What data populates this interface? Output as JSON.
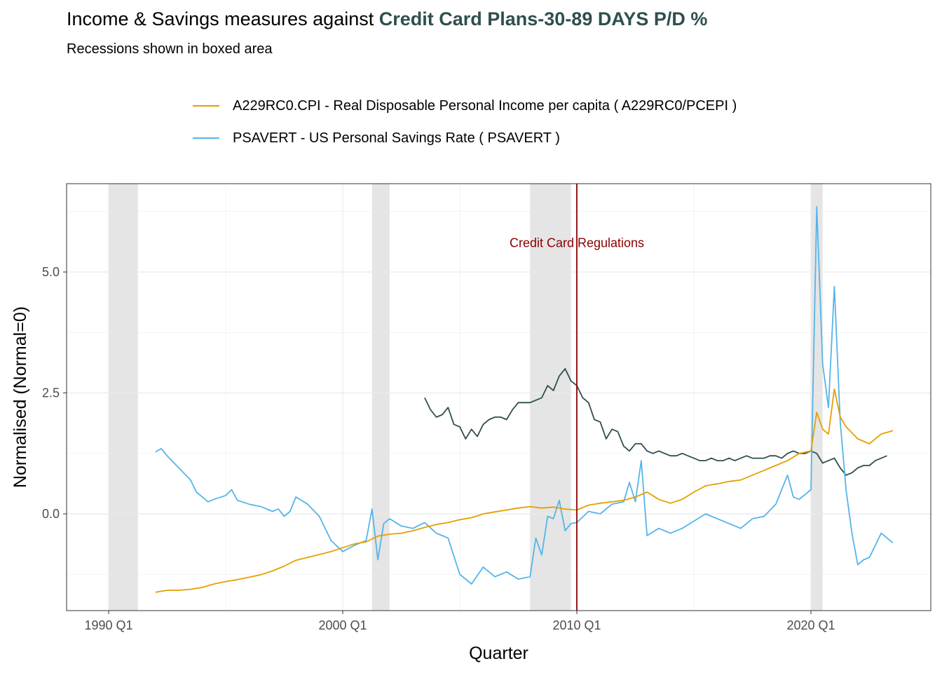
{
  "header": {
    "title_prefix": "Income & Savings measures against ",
    "title_highlight": "Credit Card Plans-30-89 DAYS P/D %",
    "subtitle": "Recessions shown in boxed area"
  },
  "colors": {
    "highlight": "#2F4F4F",
    "reference": "#2F4F4F",
    "income": "#E69F00",
    "savings": "#56B4E9",
    "regulation_line": "#8B0000",
    "recession_fill": "#E5E5E5",
    "grid": "#EBEBEB"
  },
  "chart_data": {
    "type": "line",
    "xlabel": "Quarter",
    "ylabel": "Normalised (Normal=0)",
    "xlim": [
      1990.0,
      2023.75
    ],
    "ylim": [
      -2.0,
      6.8
    ],
    "x_ticks": [
      {
        "value": 1990.0,
        "label": "1990 Q1"
      },
      {
        "value": 2000.0,
        "label": "2000 Q1"
      },
      {
        "value": 2010.0,
        "label": "2010 Q1"
      },
      {
        "value": 2020.0,
        "label": "2020 Q1"
      }
    ],
    "y_ticks": [
      {
        "value": 0.0,
        "label": "0.0"
      },
      {
        "value": 2.5,
        "label": "2.5"
      },
      {
        "value": 5.0,
        "label": "5.0"
      }
    ],
    "grid": true,
    "legend_position": "top",
    "recessions": [
      [
        1990.0,
        1991.25
      ],
      [
        2001.25,
        2002.0
      ],
      [
        2008.0,
        2009.75
      ],
      [
        2020.0,
        2020.5
      ]
    ],
    "annotation": {
      "x": 2010.0,
      "y": 5.6,
      "text": "Credit Card Regulations"
    },
    "series": [
      {
        "name": "A229RC0.CPI - Real Disposable Personal Income per capita ( A229RC0/PCEPI )",
        "role": "income",
        "x": [
          1992.0,
          1992.5,
          1993.0,
          1993.5,
          1994.0,
          1994.5,
          1995.0,
          1995.5,
          1996.0,
          1996.5,
          1997.0,
          1997.5,
          1998.0,
          1998.5,
          1999.0,
          1999.5,
          2000.0,
          2000.5,
          2001.0,
          2001.5,
          2002.0,
          2002.5,
          2003.0,
          2003.5,
          2004.0,
          2004.5,
          2005.0,
          2005.5,
          2006.0,
          2006.5,
          2007.0,
          2007.5,
          2008.0,
          2008.5,
          2009.0,
          2009.5,
          2010.0,
          2010.5,
          2011.0,
          2011.5,
          2012.0,
          2012.5,
          2013.0,
          2013.5,
          2014.0,
          2014.5,
          2015.0,
          2015.5,
          2016.0,
          2016.5,
          2017.0,
          2017.5,
          2018.0,
          2018.5,
          2019.0,
          2019.5,
          2020.0,
          2020.25,
          2020.5,
          2020.75,
          2021.0,
          2021.25,
          2021.5,
          2022.0,
          2022.5,
          2023.0,
          2023.5
        ],
        "values": [
          -1.62,
          -1.58,
          -1.58,
          -1.56,
          -1.52,
          -1.45,
          -1.4,
          -1.36,
          -1.31,
          -1.26,
          -1.18,
          -1.08,
          -0.96,
          -0.9,
          -0.84,
          -0.78,
          -0.7,
          -0.62,
          -0.58,
          -0.46,
          -0.42,
          -0.4,
          -0.35,
          -0.28,
          -0.22,
          -0.18,
          -0.12,
          -0.08,
          0.0,
          0.04,
          0.08,
          0.12,
          0.15,
          0.12,
          0.14,
          0.1,
          0.08,
          0.18,
          0.22,
          0.25,
          0.28,
          0.35,
          0.45,
          0.3,
          0.22,
          0.3,
          0.45,
          0.58,
          0.62,
          0.67,
          0.7,
          0.8,
          0.9,
          1.0,
          1.1,
          1.25,
          1.3,
          2.1,
          1.75,
          1.65,
          2.58,
          2.0,
          1.8,
          1.55,
          1.45,
          1.65,
          1.72
        ]
      },
      {
        "name": "PSAVERT - US Personal Savings Rate ( PSAVERT )",
        "role": "savings",
        "x": [
          1992.0,
          1992.25,
          1992.5,
          1993.0,
          1993.5,
          1993.75,
          1994.0,
          1994.25,
          1994.5,
          1995.0,
          1995.25,
          1995.5,
          1996.0,
          1996.5,
          1997.0,
          1997.25,
          1997.5,
          1997.75,
          1998.0,
          1998.5,
          1999.0,
          1999.5,
          2000.0,
          2000.5,
          2001.0,
          2001.25,
          2001.5,
          2001.75,
          2002.0,
          2002.5,
          2003.0,
          2003.5,
          2004.0,
          2004.5,
          2005.0,
          2005.5,
          2006.0,
          2006.5,
          2007.0,
          2007.5,
          2008.0,
          2008.25,
          2008.5,
          2008.75,
          2009.0,
          2009.25,
          2009.5,
          2009.75,
          2010.0,
          2010.5,
          2011.0,
          2011.5,
          2012.0,
          2012.25,
          2012.5,
          2012.75,
          2013.0,
          2013.5,
          2014.0,
          2014.5,
          2015.0,
          2015.5,
          2016.0,
          2016.5,
          2017.0,
          2017.5,
          2018.0,
          2018.5,
          2019.0,
          2019.25,
          2019.5,
          2019.75,
          2020.0,
          2020.25,
          2020.5,
          2020.75,
          2021.0,
          2021.25,
          2021.5,
          2021.75,
          2022.0,
          2022.25,
          2022.5,
          2023.0,
          2023.5
        ],
        "values": [
          1.28,
          1.35,
          1.2,
          0.95,
          0.7,
          0.45,
          0.35,
          0.25,
          0.3,
          0.38,
          0.5,
          0.28,
          0.2,
          0.15,
          0.05,
          0.1,
          -0.05,
          0.05,
          0.35,
          0.2,
          -0.05,
          -0.55,
          -0.78,
          -0.65,
          -0.55,
          0.1,
          -0.95,
          -0.2,
          -0.1,
          -0.25,
          -0.3,
          -0.18,
          -0.4,
          -0.5,
          -1.25,
          -1.45,
          -1.1,
          -1.3,
          -1.2,
          -1.35,
          -1.3,
          -0.5,
          -0.85,
          -0.05,
          -0.1,
          0.28,
          -0.35,
          -0.2,
          -0.18,
          0.05,
          0.0,
          0.2,
          0.25,
          0.65,
          0.25,
          1.1,
          -0.45,
          -0.3,
          -0.4,
          -0.3,
          -0.15,
          0.0,
          -0.1,
          -0.2,
          -0.3,
          -0.1,
          -0.05,
          0.2,
          0.8,
          0.35,
          0.3,
          0.4,
          0.5,
          6.35,
          3.1,
          2.2,
          4.7,
          1.9,
          0.5,
          -0.4,
          -1.05,
          -0.95,
          -0.9,
          -0.4,
          -0.6
        ]
      },
      {
        "role": "reference",
        "x": [
          2003.5,
          2003.75,
          2004.0,
          2004.25,
          2004.5,
          2004.75,
          2005.0,
          2005.25,
          2005.5,
          2005.75,
          2006.0,
          2006.25,
          2006.5,
          2006.75,
          2007.0,
          2007.25,
          2007.5,
          2007.75,
          2008.0,
          2008.25,
          2008.5,
          2008.75,
          2009.0,
          2009.25,
          2009.5,
          2009.75,
          2010.0,
          2010.25,
          2010.5,
          2010.75,
          2011.0,
          2011.25,
          2011.5,
          2011.75,
          2012.0,
          2012.25,
          2012.5,
          2012.75,
          2013.0,
          2013.25,
          2013.5,
          2013.75,
          2014.0,
          2014.25,
          2014.5,
          2014.75,
          2015.0,
          2015.25,
          2015.5,
          2015.75,
          2016.0,
          2016.25,
          2016.5,
          2016.75,
          2017.0,
          2017.25,
          2017.5,
          2017.75,
          2018.0,
          2018.25,
          2018.5,
          2018.75,
          2019.0,
          2019.25,
          2019.5,
          2019.75,
          2020.0,
          2020.25,
          2020.5,
          2020.75,
          2021.0,
          2021.25,
          2021.5,
          2021.75,
          2022.0,
          2022.25,
          2022.5,
          2022.75,
          2023.0,
          2023.25
        ],
        "values": [
          2.4,
          2.15,
          2.0,
          2.05,
          2.2,
          1.85,
          1.8,
          1.55,
          1.75,
          1.6,
          1.85,
          1.95,
          2.0,
          2.0,
          1.95,
          2.15,
          2.3,
          2.3,
          2.3,
          2.35,
          2.4,
          2.65,
          2.55,
          2.85,
          3.0,
          2.75,
          2.65,
          2.4,
          2.3,
          1.95,
          1.9,
          1.55,
          1.75,
          1.7,
          1.4,
          1.3,
          1.45,
          1.45,
          1.3,
          1.25,
          1.3,
          1.25,
          1.2,
          1.2,
          1.25,
          1.2,
          1.15,
          1.1,
          1.1,
          1.15,
          1.1,
          1.1,
          1.15,
          1.1,
          1.15,
          1.2,
          1.15,
          1.15,
          1.15,
          1.2,
          1.2,
          1.15,
          1.25,
          1.3,
          1.25,
          1.25,
          1.3,
          1.25,
          1.05,
          1.1,
          1.15,
          0.95,
          0.8,
          0.85,
          0.95,
          1.0,
          1.0,
          1.1,
          1.15,
          1.2
        ]
      }
    ]
  }
}
